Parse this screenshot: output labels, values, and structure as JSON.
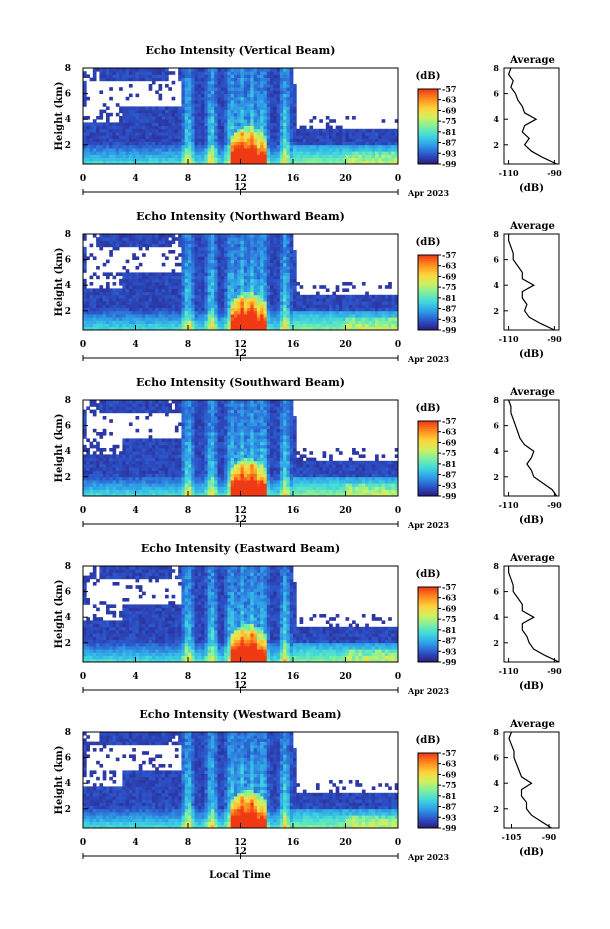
{
  "figure": {
    "xlabel": "Local Time",
    "date_label": "Apr 2023",
    "date_tick": "12",
    "colorbar_unit": "(dB)",
    "colorbar_ticks": [
      "-57",
      "-63",
      "-69",
      "-75",
      "-81",
      "-87",
      "-93",
      "-99"
    ],
    "profile_title": "Average",
    "profile_unit": "(dB)",
    "colors": {
      "colormap": [
        "#2b1a7a",
        "#2c52c8",
        "#2f9be8",
        "#3fd6e0",
        "#7cf0a0",
        "#d2f060",
        "#ffd23c",
        "#ff8a1e",
        "#f03a16"
      ]
    }
  },
  "chart_data": [
    {
      "type": "heatmap",
      "title": "Echo Intensity (Vertical Beam)",
      "ylabel": "Height (km)",
      "x_ticks": [
        "0",
        "4",
        "8",
        "12",
        "16",
        "20",
        "0"
      ],
      "y_ticks": [
        "2",
        "4",
        "6",
        "8"
      ],
      "xlim": [
        0,
        24
      ],
      "ylim": [
        0.5,
        8
      ],
      "zlim": [
        -99,
        -57
      ],
      "profile": {
        "title": "Average",
        "xlabel": "(dB)",
        "x_ticks": [
          "-110",
          "-90"
        ],
        "xlim": [
          -112,
          -88
        ],
        "height": [
          0.5,
          1,
          1.5,
          2,
          2.5,
          3,
          3.5,
          4,
          4.5,
          5,
          5.5,
          6,
          6.5,
          7,
          7.5,
          8
        ],
        "db": [
          -89,
          -95,
          -100,
          -103,
          -101,
          -104,
          -103,
          -98,
          -103,
          -104,
          -106,
          -107,
          -109,
          -108,
          -110,
          -109
        ]
      }
    },
    {
      "type": "heatmap",
      "title": "Echo Intensity (Northward Beam)",
      "ylabel": "Height (km)",
      "x_ticks": [
        "0",
        "4",
        "8",
        "12",
        "16",
        "20",
        "0"
      ],
      "y_ticks": [
        "2",
        "4",
        "6",
        "8"
      ],
      "xlim": [
        0,
        24
      ],
      "ylim": [
        0.5,
        8
      ],
      "zlim": [
        -99,
        -57
      ],
      "profile": {
        "title": "Average",
        "xlabel": "(dB)",
        "x_ticks": [
          "-110",
          "-90"
        ],
        "xlim": [
          -112,
          -88
        ],
        "height": [
          0.5,
          1,
          1.5,
          2,
          2.5,
          3,
          3.5,
          4,
          4.5,
          5,
          5.5,
          6,
          6.5,
          7,
          7.5,
          8
        ],
        "db": [
          -90,
          -96,
          -101,
          -103,
          -102,
          -104,
          -104,
          -99,
          -104,
          -104,
          -106,
          -108,
          -108,
          -109,
          -110,
          -110
        ]
      }
    },
    {
      "type": "heatmap",
      "title": "Echo Intensity (Southward Beam)",
      "ylabel": "Height (km)",
      "x_ticks": [
        "0",
        "4",
        "8",
        "12",
        "16",
        "20",
        "0"
      ],
      "y_ticks": [
        "2",
        "4",
        "6",
        "8"
      ],
      "xlim": [
        0,
        24
      ],
      "ylim": [
        0.5,
        8
      ],
      "zlim": [
        -99,
        -57
      ],
      "profile": {
        "title": "Average",
        "xlabel": "(dB)",
        "x_ticks": [
          "-110",
          "-90"
        ],
        "xlim": [
          -112,
          -88
        ],
        "height": [
          0.5,
          1,
          1.5,
          2,
          2.5,
          3,
          3.5,
          4,
          4.5,
          5,
          5.5,
          6,
          6.5,
          7,
          7.5,
          8
        ],
        "db": [
          -89,
          -91,
          -95,
          -99,
          -100,
          -102,
          -100,
          -99,
          -103,
          -105,
          -106,
          -107,
          -108,
          -109,
          -109,
          -110
        ]
      }
    },
    {
      "type": "heatmap",
      "title": "Echo Intensity (Eastward Beam)",
      "ylabel": "Height (km)",
      "x_ticks": [
        "0",
        "4",
        "8",
        "12",
        "16",
        "20",
        "0"
      ],
      "y_ticks": [
        "2",
        "4",
        "6",
        "8"
      ],
      "xlim": [
        0,
        24
      ],
      "ylim": [
        0.5,
        8
      ],
      "zlim": [
        -99,
        -57
      ],
      "profile": {
        "title": "Average",
        "xlabel": "(dB)",
        "x_ticks": [
          "-110",
          "-90"
        ],
        "xlim": [
          -112,
          -88
        ],
        "height": [
          0.5,
          1,
          1.5,
          2,
          2.5,
          3,
          3.5,
          4,
          4.5,
          5,
          5.5,
          6,
          6.5,
          7,
          7.5,
          8
        ],
        "db": [
          -88,
          -94,
          -99,
          -101,
          -102,
          -104,
          -104,
          -99,
          -104,
          -104,
          -106,
          -108,
          -108,
          -109,
          -110,
          -110
        ]
      }
    },
    {
      "type": "heatmap",
      "title": "Echo Intensity (Westward Beam)",
      "ylabel": "Height (km)",
      "x_ticks": [
        "0",
        "4",
        "8",
        "12",
        "16",
        "20",
        "0"
      ],
      "y_ticks": [
        "2",
        "4",
        "6",
        "8"
      ],
      "xlim": [
        0,
        24
      ],
      "ylim": [
        0.5,
        8
      ],
      "zlim": [
        -99,
        -57
      ],
      "profile": {
        "title": "Average",
        "xlabel": "(dB)",
        "x_ticks": [
          "-105",
          "-90"
        ],
        "xlim": [
          -108,
          -86
        ],
        "height": [
          0.5,
          1,
          1.5,
          2,
          2.5,
          3,
          3.5,
          4,
          4.5,
          5,
          5.5,
          6,
          6.5,
          7,
          7.5,
          8
        ],
        "db": [
          -89,
          -93,
          -97,
          -99,
          -99,
          -101,
          -101,
          -97,
          -101,
          -102,
          -103,
          -104,
          -104,
          -105,
          -106,
          -105
        ]
      }
    }
  ]
}
